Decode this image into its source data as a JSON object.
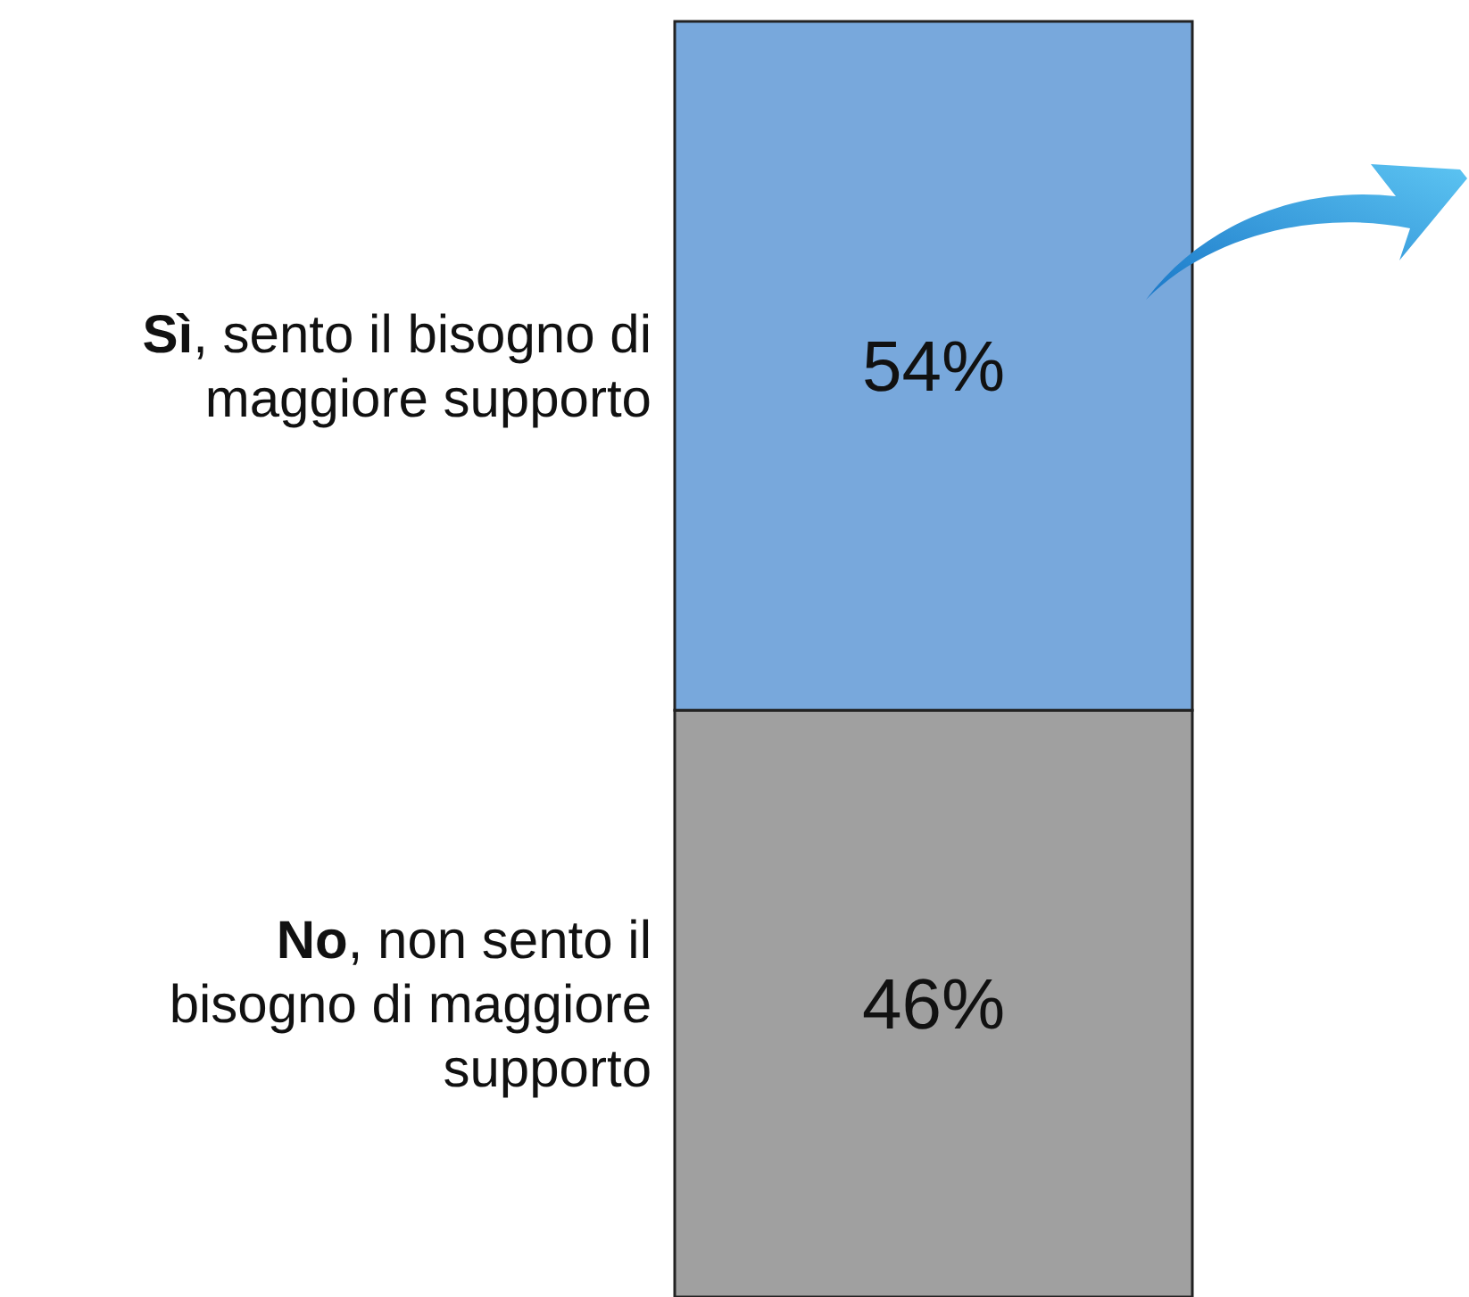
{
  "chart_data": {
    "type": "bar",
    "stacked": true,
    "categories": [
      null
    ],
    "series": [
      {
        "name": "No, non sento il bisogno di maggiore supporto",
        "color": "#a0a0a0",
        "values": [
          46
        ],
        "value_labels": [
          "46%"
        ]
      },
      {
        "name": "Sì, sento il bisogno di maggiore supporto",
        "color": "#78a8dc",
        "values": [
          54
        ],
        "value_labels": [
          "54%"
        ]
      }
    ]
  }
}
